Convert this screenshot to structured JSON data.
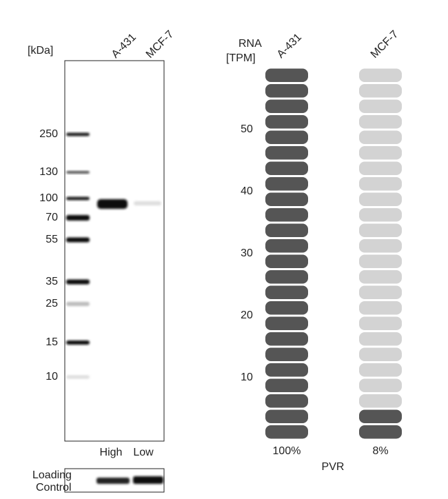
{
  "western_blot": {
    "unit_label": "[kDa]",
    "lanes": [
      "A-431",
      "MCF-7"
    ],
    "markers": [
      250,
      130,
      100,
      70,
      55,
      35,
      25,
      15,
      10
    ],
    "expression": [
      "High",
      "Low"
    ],
    "loading_control": [
      "Loading",
      "Control"
    ]
  },
  "chart_data": {
    "type": "pill",
    "axis_label": [
      "RNA",
      "[TPM]"
    ],
    "categories": [
      "A-431",
      "MCF-7"
    ],
    "values": [
      60,
      4.8
    ],
    "ylim": [
      0,
      60
    ],
    "yticks": [
      10,
      20,
      30,
      40,
      50
    ],
    "percent": {
      "values": [
        100,
        8
      ],
      "value_labels": [
        "100%",
        "8%"
      ]
    },
    "gene": "PVR",
    "colors": {
      "filled": "#555555",
      "empty": "#d3d3d3"
    }
  }
}
